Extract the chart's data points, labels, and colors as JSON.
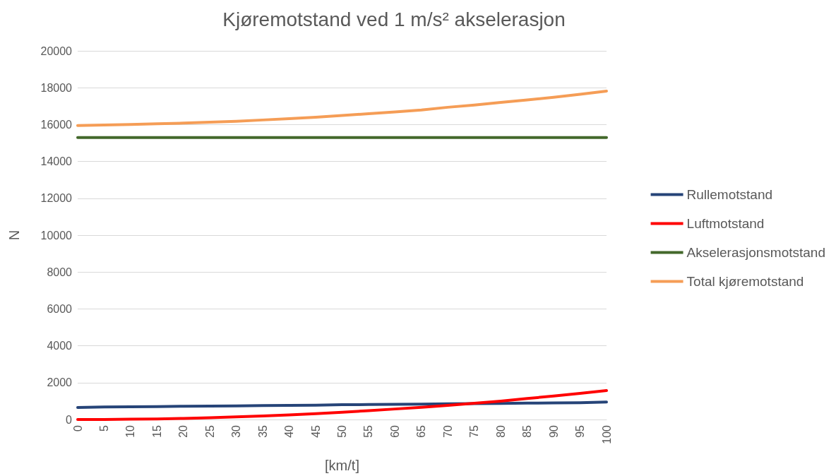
{
  "chart_data": {
    "type": "line",
    "title": "Kjøremotstand ved 1 m/s² akselerasjon",
    "xlabel": "[km/t]",
    "ylabel": "N",
    "categories": [
      "0",
      "5",
      "10",
      "15",
      "20",
      "25",
      "30",
      "35",
      "40",
      "45",
      "50",
      "55",
      "60",
      "65",
      "70",
      "75",
      "80",
      "85",
      "90",
      "95",
      "100"
    ],
    "series": [
      {
        "name": "Rullemotstand",
        "color": "#264478",
        "values": [
          650,
          680,
          690,
          700,
          720,
          730,
          740,
          760,
          770,
          780,
          800,
          810,
          820,
          830,
          850,
          860,
          870,
          890,
          900,
          910,
          950
        ]
      },
      {
        "name": "Luftmotstand",
        "color": "#ff0000",
        "values": [
          0,
          0,
          20,
          30,
          60,
          100,
          140,
          190,
          250,
          320,
          390,
          480,
          570,
          660,
          770,
          880,
          1000,
          1140,
          1270,
          1420,
          1570
        ]
      },
      {
        "name": "Akselerasjonsmotstand",
        "color": "#43682b",
        "values": [
          15300,
          15300,
          15300,
          15300,
          15300,
          15300,
          15300,
          15300,
          15300,
          15300,
          15300,
          15300,
          15300,
          15300,
          15300,
          15300,
          15300,
          15300,
          15300,
          15300,
          15300
        ]
      },
      {
        "name": "Total kjøremotstand",
        "color": "#f59d56",
        "values": [
          15950,
          15980,
          16010,
          16040,
          16080,
          16130,
          16180,
          16250,
          16320,
          16400,
          16490,
          16590,
          16690,
          16790,
          16940,
          17060,
          17200,
          17340,
          17480,
          17640,
          17820
        ]
      }
    ],
    "ylim": [
      0,
      20000
    ],
    "yticks": [
      0,
      2000,
      4000,
      6000,
      8000,
      10000,
      12000,
      14000,
      16000,
      18000,
      20000
    ],
    "grid": "y",
    "legend": "right",
    "marker": "none",
    "line_style": "solid"
  }
}
